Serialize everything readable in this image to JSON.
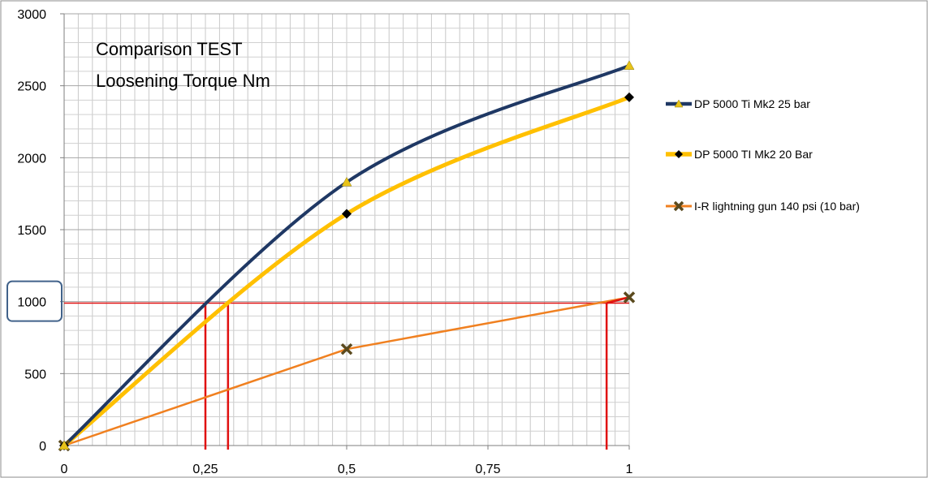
{
  "chart_data": {
    "type": "line",
    "title_lines": [
      "Comparison TEST",
      "Loosening Torque Nm"
    ],
    "xlabel": "",
    "ylabel": "",
    "xlim": [
      0,
      1
    ],
    "ylim": [
      0,
      3000
    ],
    "x_ticks": [
      0,
      0.25,
      0.5,
      0.75,
      1
    ],
    "x_tick_labels": [
      "0",
      "0,25",
      "0,5",
      "0,75",
      "1"
    ],
    "y_ticks": [
      0,
      500,
      1000,
      1500,
      2000,
      2500,
      3000
    ],
    "y_tick_labels": [
      "0",
      "500",
      "1000",
      "1500",
      "2000",
      "2500",
      "3000"
    ],
    "grid": true,
    "legend_position": "right",
    "highlighted_y_tick": "1000",
    "series": [
      {
        "name": "DP 5000 Ti Mk2 25 bar",
        "color": "#1F3864",
        "marker": "triangle",
        "marker_color": "#E8C319",
        "x": [
          0,
          0.5,
          1
        ],
        "y": [
          0,
          1830,
          2640
        ]
      },
      {
        "name": "DP 5000 TI Mk2 20 Bar",
        "color": "#FFC000",
        "marker": "diamond",
        "marker_color": "#000000",
        "x": [
          0,
          0.5,
          1
        ],
        "y": [
          0,
          1610,
          2420
        ]
      },
      {
        "name": "I-R lightning gun 140 psi (10 bar)",
        "color": "#F08020",
        "marker": "x",
        "marker_color": "#5B4A1E",
        "x": [
          0,
          0.5,
          1
        ],
        "y": [
          0,
          670,
          1030
        ]
      }
    ],
    "reference_lines": {
      "color": "#E01010",
      "y_value": 990,
      "x_values": [
        0.25,
        0.29,
        0.96
      ]
    }
  }
}
